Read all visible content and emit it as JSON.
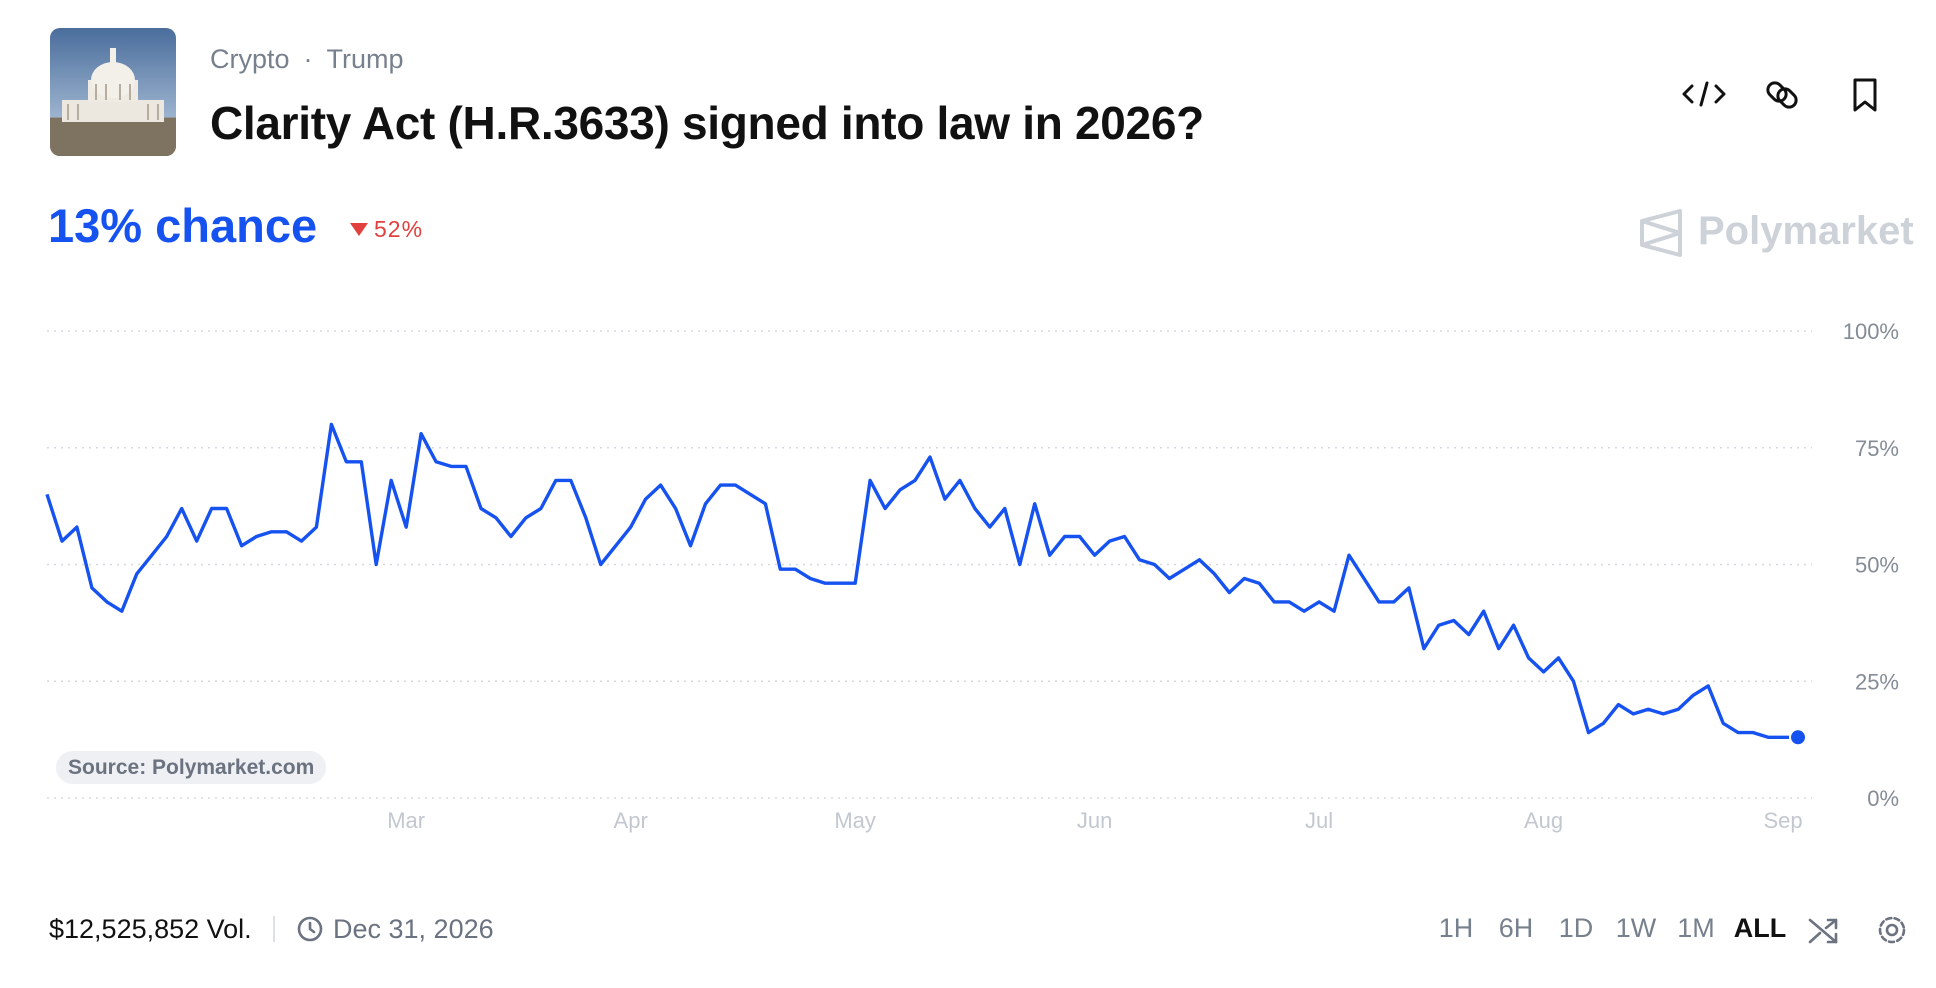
{
  "header": {
    "tags": [
      "Crypto",
      "Trump"
    ],
    "title": "Clarity Act (H.R.3633) signed into law in 2026?"
  },
  "stats": {
    "chance": "13% chance",
    "change": "52%"
  },
  "brand": "Polymarket",
  "source": "Source: Polymarket.com",
  "footer": {
    "volume": "$12,525,852 Vol.",
    "end_date": "Dec 31, 2026",
    "ranges": [
      "1H",
      "6H",
      "1D",
      "1W",
      "1M",
      "ALL"
    ]
  },
  "chart_data": {
    "type": "line",
    "color": "#1652f0",
    "grid": true,
    "ylim": [
      0,
      100
    ],
    "yticks": [
      {
        "value": 0,
        "label": "0%"
      },
      {
        "value": 25,
        "label": "25%"
      },
      {
        "value": 50,
        "label": "50%"
      },
      {
        "value": 75,
        "label": "75%"
      },
      {
        "value": 100,
        "label": "100%"
      }
    ],
    "categories": [
      null,
      null,
      null,
      null,
      null,
      null,
      null,
      null,
      null,
      null,
      null,
      null,
      null,
      null,
      null,
      null,
      null,
      null,
      null,
      null,
      null,
      null,
      null,
      null,
      "Mar",
      null,
      null,
      null,
      null,
      null,
      null,
      null,
      null,
      null,
      null,
      null,
      null,
      null,
      null,
      "Apr",
      null,
      null,
      null,
      null,
      null,
      null,
      null,
      null,
      null,
      null,
      null,
      null,
      null,
      null,
      "May",
      null,
      null,
      null,
      null,
      null,
      null,
      null,
      null,
      null,
      null,
      null,
      null,
      null,
      null,
      null,
      "Jun",
      null,
      null,
      null,
      null,
      null,
      null,
      null,
      null,
      null,
      null,
      null,
      null,
      null,
      null,
      "Jul",
      null,
      null,
      null,
      null,
      null,
      null,
      null,
      null,
      null,
      null,
      null,
      null,
      null,
      null,
      "Aug",
      null,
      null,
      null,
      null,
      null,
      null,
      null,
      null,
      null,
      null,
      null,
      null,
      null,
      null,
      null,
      "Sep",
      null
    ],
    "values": [
      65,
      55,
      58,
      45,
      42,
      40,
      48,
      52,
      56,
      62,
      55,
      62,
      62,
      54,
      56,
      57,
      57,
      55,
      58,
      80,
      72,
      72,
      50,
      68,
      58,
      78,
      72,
      71,
      71,
      62,
      60,
      56,
      60,
      62,
      68,
      68,
      60,
      50,
      54,
      58,
      64,
      67,
      62,
      54,
      63,
      67,
      67,
      65,
      63,
      49,
      49,
      47,
      46,
      46,
      46,
      68,
      62,
      66,
      68,
      73,
      64,
      68,
      62,
      58,
      62,
      50,
      63,
      52,
      56,
      56,
      52,
      55,
      56,
      51,
      50,
      47,
      49,
      51,
      48,
      44,
      47,
      46,
      42,
      42,
      40,
      42,
      40,
      52,
      47,
      42,
      42,
      45,
      32,
      37,
      38,
      35,
      40,
      32,
      37,
      30,
      27,
      30,
      25,
      14,
      16,
      20,
      18,
      19,
      18,
      19,
      22,
      24,
      16,
      14,
      14,
      13,
      13,
      13
    ]
  }
}
